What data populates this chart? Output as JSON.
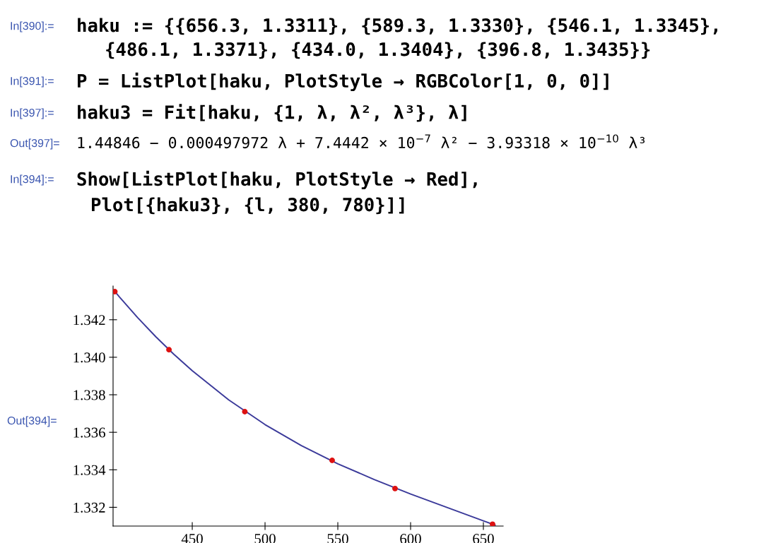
{
  "chart_data": {
    "type": "scatter",
    "xlim": [
      395.6,
      663.6
    ],
    "ylim": [
      1.331,
      1.3438
    ],
    "xticks": [
      450,
      500,
      550,
      600,
      650
    ],
    "yticks": [
      1.332,
      1.334,
      1.336,
      1.338,
      {
        "value": 1.34,
        "label": "1.340"
      },
      1.342
    ],
    "grid": false,
    "legend": false,
    "series": [
      {
        "marker": "circle",
        "color": "#dd1111",
        "x": [
          656.3,
          589.3,
          546.1,
          486.1,
          434.0,
          396.8
        ],
        "values": [
          1.3311,
          1.333,
          1.3345,
          1.3371,
          1.3404,
          1.3435
        ]
      },
      {
        "type": "line",
        "marker": "none",
        "color": "#3b3a9a",
        "x": [
          396,
          400,
          412.5,
          425,
          437.5,
          450,
          475,
          500,
          525,
          550,
          575,
          600,
          625,
          650,
          658
        ],
        "values": [
          1.34358,
          1.34321,
          1.34211,
          1.34109,
          1.34015,
          1.33928,
          1.33773,
          1.33641,
          1.33529,
          1.33432,
          1.33348,
          1.33271,
          1.33199,
          1.33128,
          1.33105
        ]
      }
    ],
    "annotations": [
      "In[390]:=",
      "haku := {{656.3, 1.3311}, {589.3, 1.3330}, {546.1, 1.3345},",
      "{486.1, 1.3371}, {434.0, 1.3404}, {396.8, 1.3435}}",
      "In[391]:=",
      "P = ListPlot[haku, PlotStyle → RGBColor[1, 0, 0]]",
      "In[397]:=",
      "haku3 = Fit[haku, {1, λ, λ², λ³}, λ]",
      "Out[397]=",
      "1.44846 − 0.000497972 λ + 7.4442 × 10$^{−7}$ λ² − 3.93318 × 10$^{−10}$ λ³",
      "In[394]:=",
      "Show[ListPlot[haku, PlotStyle → Red],",
      "Plot[{haku3}, {l, 380, 780}]]",
      "Out[394]="
    ]
  }
}
